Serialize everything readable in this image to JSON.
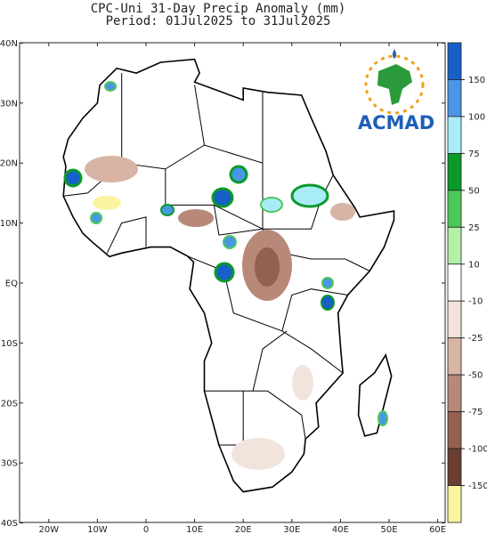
{
  "title": [
    "CPC-Uni 31-Day Precip Anomaly (mm)",
    "Period: 01Jul2025 to 31Jul2025"
  ],
  "map": {
    "lon_ticks": [
      {
        "value": -20,
        "label": "20W"
      },
      {
        "value": -10,
        "label": "10W"
      },
      0,
      {
        "value": 10,
        "label": "10E"
      },
      {
        "value": 20,
        "label": "20E"
      },
      {
        "value": 30,
        "label": "30E"
      },
      {
        "value": 40,
        "label": "40E"
      },
      {
        "value": 50,
        "label": "50E"
      },
      {
        "value": 60,
        "label": "60E"
      }
    ],
    "lat_ticks": [
      {
        "value": 40,
        "label": "40N"
      },
      {
        "value": 30,
        "label": "30N"
      },
      {
        "value": 20,
        "label": "20N"
      },
      {
        "value": 10,
        "label": "10N"
      },
      {
        "value": 0,
        "label": "EQ"
      },
      {
        "value": -10,
        "label": "10S"
      },
      {
        "value": -20,
        "label": "20S"
      },
      {
        "value": -30,
        "label": "30S"
      },
      {
        "value": -40,
        "label": "40S"
      }
    ],
    "colorbar": {
      "levels": [
        150,
        100,
        75,
        50,
        25,
        10,
        -10,
        -25,
        -50,
        -75,
        -100,
        -150
      ],
      "colors": [
        "#1660c8",
        "#4a96e6",
        "#a8ecf8",
        "#0a9a2a",
        "#4cc85a",
        "#b4f0a8",
        "#ffffff",
        "#f2e4dc",
        "#d8b4a4",
        "#b88878",
        "#946050",
        "#6a3e30",
        "#f8f4a0"
      ]
    },
    "logo": "ACMAD"
  }
}
